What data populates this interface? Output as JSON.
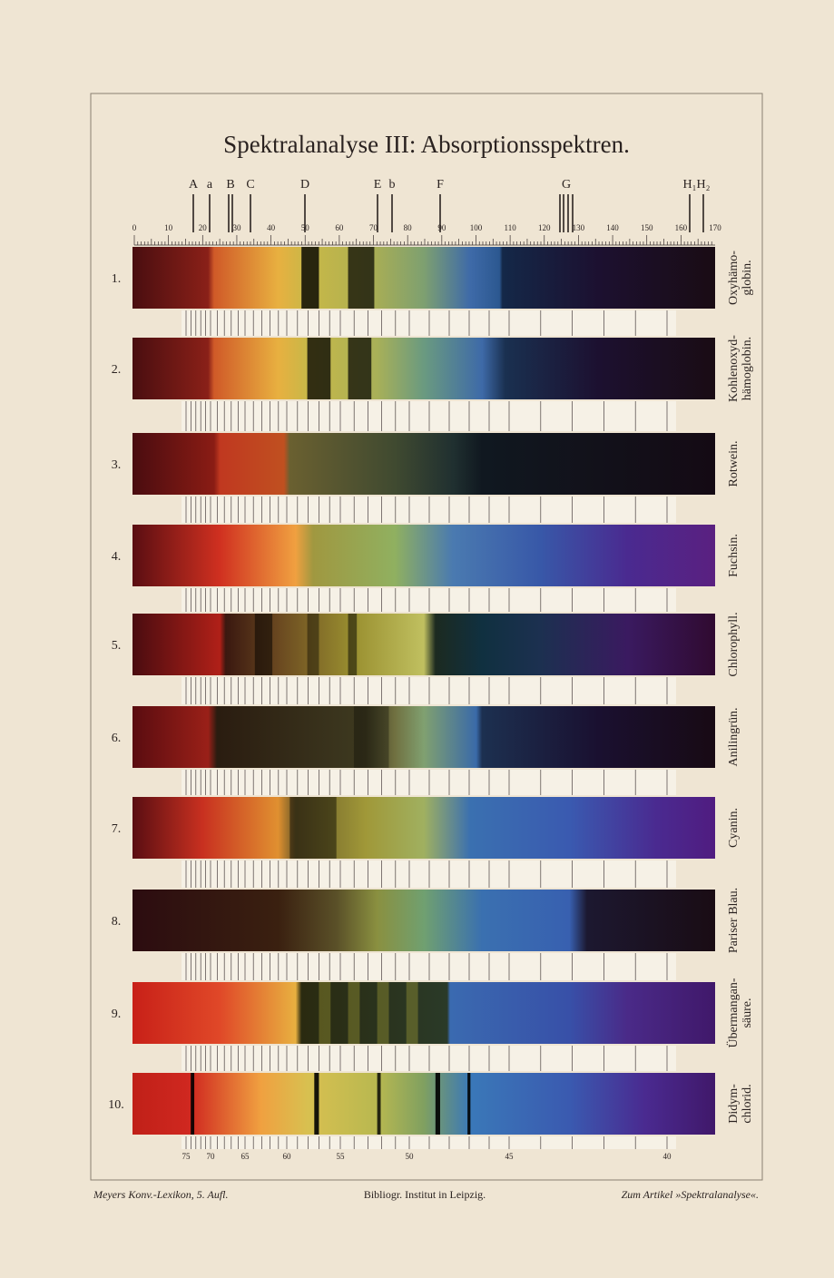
{
  "title": "Spektralanalyse III: Absorptionsspektren.",
  "top_scale": {
    "ticks": [
      0,
      10,
      20,
      30,
      40,
      50,
      60,
      70,
      80,
      90,
      100,
      110,
      120,
      130,
      140,
      150,
      160,
      170
    ],
    "lines": [
      "A",
      "a",
      "B",
      "C",
      "D",
      "E",
      "b",
      "F",
      "G",
      "H₁H₂"
    ]
  },
  "spectra": [
    {
      "number": "1.",
      "name": [
        "Oxyhämo-",
        "globin."
      ]
    },
    {
      "number": "2.",
      "name": [
        "Kohlenoxyd-",
        "hämoglobin."
      ]
    },
    {
      "number": "3.",
      "name": [
        "Rotwein."
      ]
    },
    {
      "number": "4.",
      "name": [
        "Fuchsin."
      ]
    },
    {
      "number": "5.",
      "name": [
        "Chlorophyll."
      ]
    },
    {
      "number": "6.",
      "name": [
        "Anilingrün."
      ]
    },
    {
      "number": "7.",
      "name": [
        "Cyanin."
      ]
    },
    {
      "number": "8.",
      "name": [
        "Pariser Blau."
      ]
    },
    {
      "number": "9.",
      "name": [
        "Übermangan-",
        "säure."
      ]
    },
    {
      "number": "10.",
      "name": [
        "Didym-",
        "chlorid."
      ]
    }
  ],
  "bottom_scale": {
    "ticks": [
      75,
      70,
      65,
      60,
      55,
      50,
      45,
      40
    ]
  },
  "footer": {
    "left": "Meyers Konv.-Lexikon, 5. Aufl.",
    "center": "Bibliogr. Institut in Leipzig.",
    "right": "Zum Artikel »Spektralanalyse«."
  }
}
